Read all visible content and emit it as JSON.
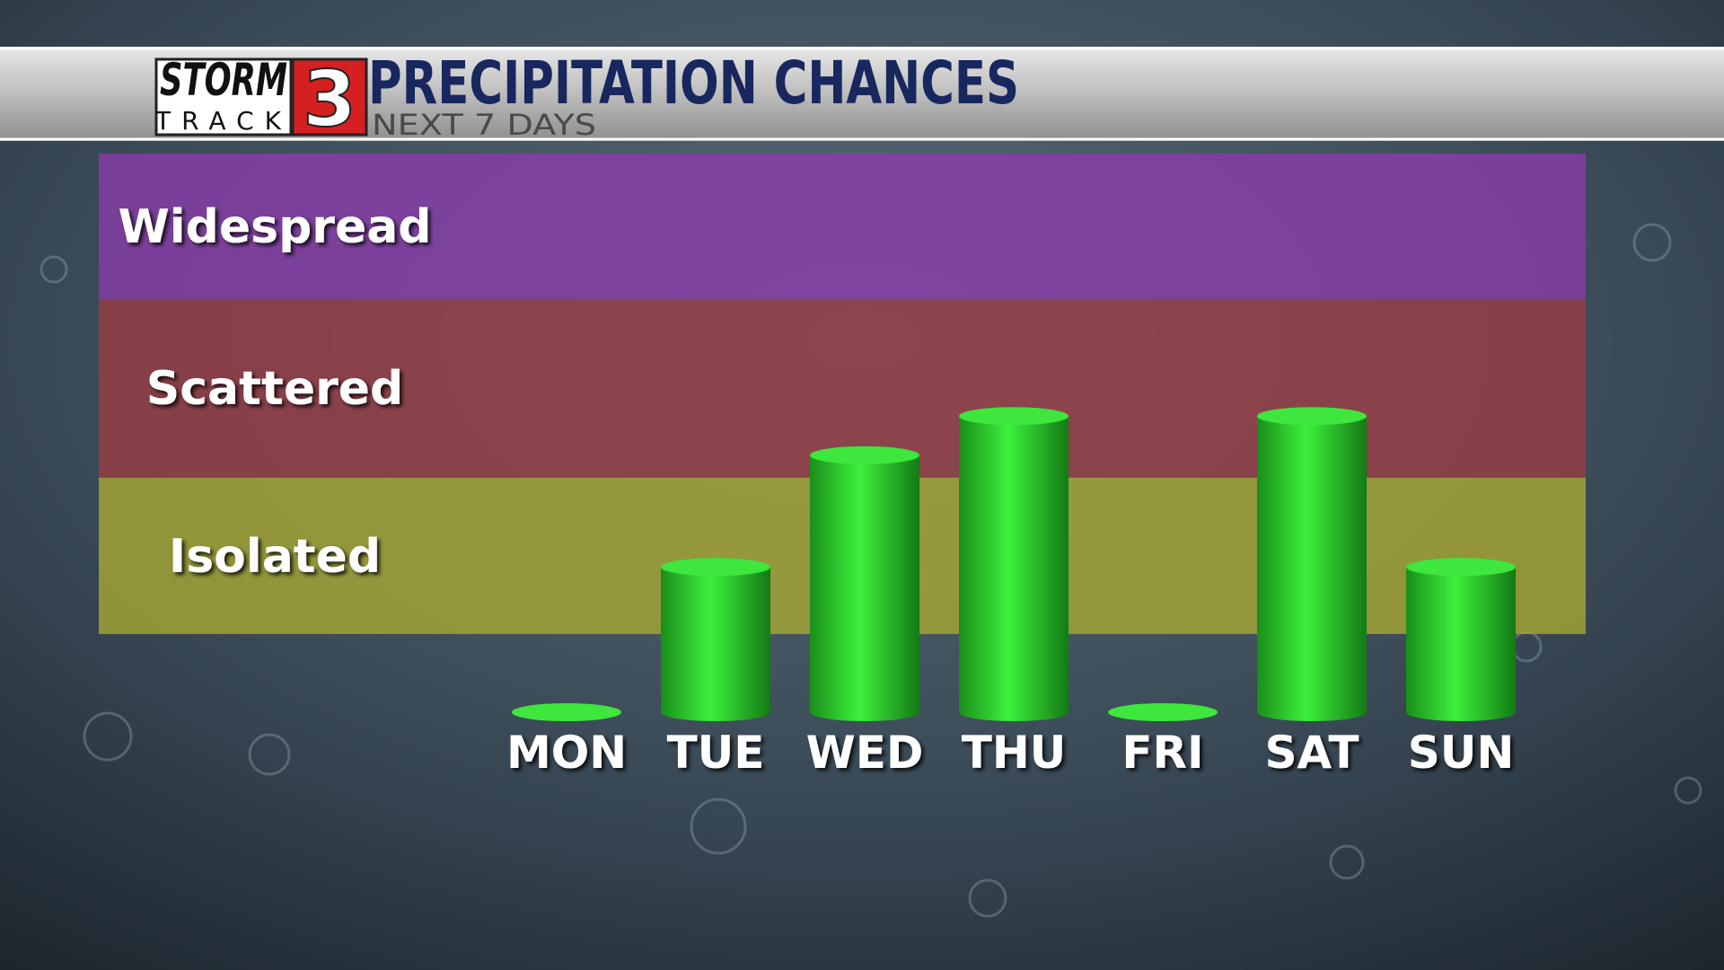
{
  "chart_data": {
    "type": "bar",
    "title": "PRECIPITATION CHANCES",
    "subtitle": "NEXT 7 DAYS",
    "logo": {
      "storm": "STORM",
      "track": "TRACK",
      "number": "3"
    },
    "categories": [
      "MON",
      "TUE",
      "WED",
      "THU",
      "FRI",
      "SAT",
      "SUN"
    ],
    "values": [
      0,
      26,
      46,
      53,
      0,
      53,
      26
    ],
    "color": "#33d633",
    "ylim": [
      0,
      100
    ],
    "bands": [
      {
        "label": "Isolated",
        "from": 14,
        "to": 42,
        "color": "#a8a832"
      },
      {
        "label": "Scattered",
        "from": 42,
        "to": 74,
        "color": "#9a3c44"
      },
      {
        "label": "Widespread",
        "from": 74,
        "to": 100,
        "color": "#8a3caa"
      }
    ]
  }
}
